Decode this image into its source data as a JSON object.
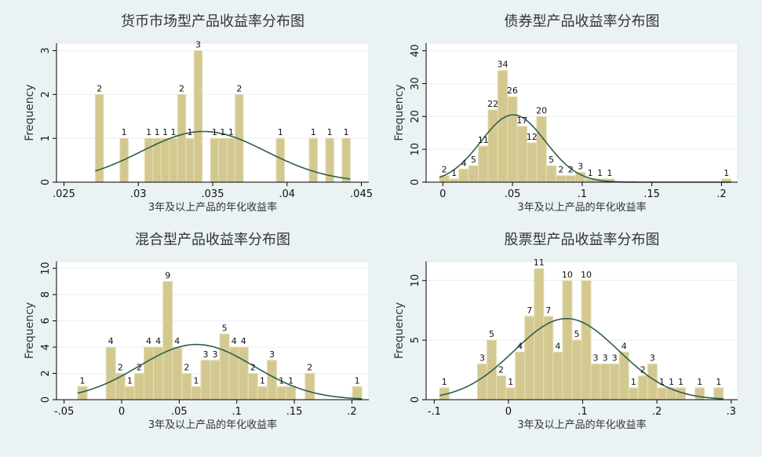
{
  "colors": {
    "background": "#eaf2f3",
    "plot_bg": "#ffffff",
    "bar_fill": "#d3c990",
    "bar_edge": "#e6dfb4",
    "curve": "#2e5e4e",
    "text": "#333333"
  },
  "chart_data": [
    {
      "type": "bar",
      "title": "货币市场型产品收益率分布图",
      "xlabel": "3年及以上产品的年化收益率",
      "ylabel": "Frequency",
      "grid": true,
      "xlim": [
        0.0245,
        0.0455
      ],
      "ylim": [
        0,
        3.17
      ],
      "xticks": [
        0.025,
        0.03,
        0.035,
        0.04,
        0.045
      ],
      "xtick_labels": [
        ".025",
        ".03",
        ".035",
        ".04",
        ".045"
      ],
      "yticks": [
        0,
        1,
        2,
        3
      ],
      "ytick_labels": [
        "0",
        "1",
        "2",
        "3"
      ],
      "bin_start": 0.02711,
      "bin_width": 0.000553,
      "counts": [
        2,
        0,
        0,
        1,
        0,
        0,
        1,
        1,
        1,
        1,
        2,
        1,
        3,
        0,
        1,
        1,
        1,
        2,
        0,
        0,
        0,
        0,
        1,
        0,
        0,
        0,
        1,
        0,
        1,
        0,
        1
      ],
      "normal_curve": {
        "mean": 0.0344,
        "sd": 0.0042
      }
    },
    {
      "type": "bar",
      "title": "债券型产品收益率分布图",
      "xlabel": "3年及以上产品的年化收益率",
      "ylabel": "Frequency",
      "grid": true,
      "xlim": [
        -0.012,
        0.2116
      ],
      "ylim": [
        0,
        42.3
      ],
      "xticks": [
        0,
        0.05,
        0.1,
        0.15,
        0.2
      ],
      "xtick_labels": [
        "0",
        ".05",
        ".1",
        ".15",
        ".2"
      ],
      "yticks": [
        0,
        10,
        20,
        30,
        40
      ],
      "ytick_labels": [
        "0",
        "10",
        "20",
        "30",
        "40"
      ],
      "bin_start": -0.00244,
      "bin_width": 0.00698,
      "counts": [
        2,
        1,
        4,
        5,
        11,
        22,
        34,
        26,
        17,
        12,
        20,
        5,
        2,
        2,
        3,
        1,
        1,
        1,
        0,
        0,
        0,
        0,
        0,
        0,
        0,
        0,
        0,
        0,
        0,
        1
      ],
      "normal_curve": {
        "mean": 0.0505,
        "sd": 0.0231
      }
    },
    {
      "type": "bar",
      "title": "混合型产品收益率分布图",
      "xlabel": "3年及以上产品的年化收益率",
      "ylabel": "Frequency",
      "grid": true,
      "xlim": [
        -0.0566,
        0.2147
      ],
      "ylim": [
        0,
        10.52
      ],
      "xticks": [
        -0.05,
        0,
        0.05,
        0.1,
        0.15,
        0.2
      ],
      "xtick_labels": [
        "-.05",
        "0",
        ".05",
        ".1",
        ".15",
        ".2"
      ],
      "yticks": [
        0,
        2,
        4,
        6,
        8,
        10
      ],
      "ytick_labels": [
        "0",
        "2",
        "4",
        "6",
        "8",
        "10"
      ],
      "bin_start": -0.0382,
      "bin_width": 0.00823,
      "counts": [
        1,
        0,
        0,
        4,
        2,
        1,
        2,
        4,
        4,
        9,
        4,
        2,
        1,
        3,
        3,
        5,
        4,
        4,
        2,
        1,
        3,
        1,
        1,
        0,
        2,
        0,
        0,
        0,
        0,
        1
      ],
      "normal_curve": {
        "mean": 0.065,
        "sd": 0.05
      }
    },
    {
      "type": "bar",
      "title": "股票型产品收益率分布图",
      "xlabel": "3年及以上产品的年化收益率",
      "ylabel": "Frequency",
      "grid": true,
      "xlim": [
        -0.1109,
        0.3088
      ],
      "ylim": [
        0,
        11.6
      ],
      "xticks": [
        -0.1,
        0,
        0.1,
        0.2,
        0.3
      ],
      "xtick_labels": [
        "-.1",
        "0",
        ".1",
        ".2",
        ".3"
      ],
      "yticks": [
        0,
        5,
        10
      ],
      "ytick_labels": [
        "0",
        "5",
        "10"
      ],
      "bin_start": -0.0927,
      "bin_width": 0.01274,
      "counts": [
        1,
        0,
        0,
        0,
        3,
        5,
        2,
        1,
        4,
        7,
        11,
        7,
        4,
        10,
        5,
        10,
        3,
        3,
        3,
        4,
        1,
        2,
        3,
        1,
        1,
        1,
        0,
        1,
        0,
        1
      ],
      "normal_curve": {
        "mean": 0.0782,
        "sd": 0.0702
      }
    }
  ]
}
